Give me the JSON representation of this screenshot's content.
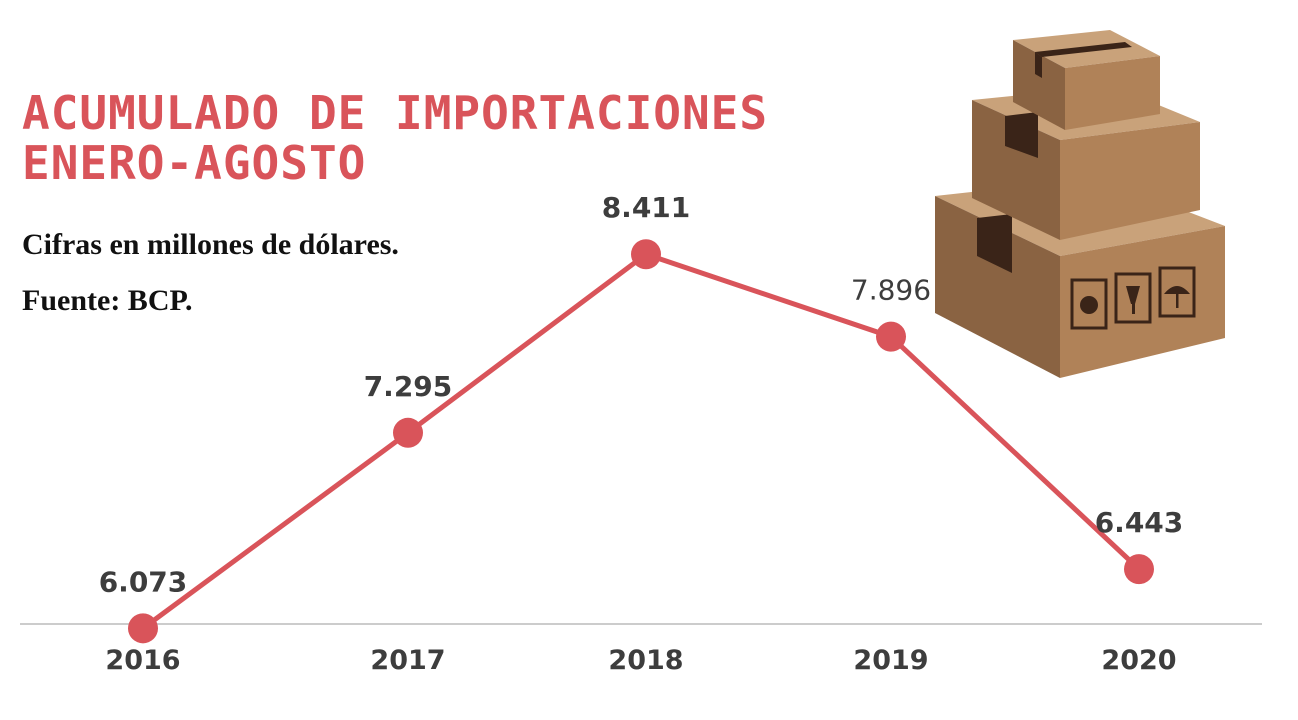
{
  "title_lines": [
    "ACUMULADO DE IMPORTACIONES",
    "ENERO-AGOSTO"
  ],
  "subtitle": "Cifras en millones de dólares.",
  "source": "Fuente: BCP.",
  "colors": {
    "accent": "#d9545a",
    "label": "#3d3d3d",
    "axis": "#cccccc"
  },
  "illustration": "stacked-cardboard-boxes-icon",
  "chart_data": {
    "type": "line",
    "categories": [
      "2016",
      "2017",
      "2018",
      "2019",
      "2020"
    ],
    "values": [
      6073,
      7295,
      8411,
      7896,
      6443
    ],
    "data_labels": [
      "6.073",
      "7.295",
      "8.411",
      "7.896",
      "6.443"
    ],
    "title": "ACUMULADO DE IMPORTACIONES ENERO-AGOSTO",
    "subtitle": "Cifras en millones de dólares.",
    "xlabel": "",
    "ylabel": "",
    "ylim": [
      5000,
      9000
    ],
    "grid": false,
    "legend": "none"
  }
}
